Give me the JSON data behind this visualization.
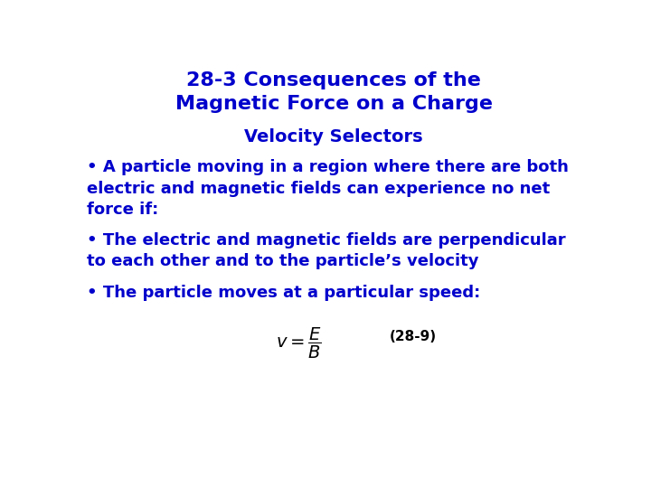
{
  "title_line1": "28-3 Consequences of the",
  "title_line2": "Magnetic Force on a Charge",
  "subtitle": "Velocity Selectors",
  "bullet1_line1": "• A particle moving in a region where there are both",
  "bullet1_line2": "electric and magnetic fields can experience no net",
  "bullet1_line3": "force if:",
  "bullet2_line1": "• The electric and magnetic fields are perpendicular",
  "bullet2_line2": "to each other and to the particle’s velocity",
  "bullet3_line1": "• The particle moves at a particular speed:",
  "equation_label": "(28-9)",
  "text_color": "#0000CC",
  "eq_color": "#000000",
  "bg_color": "#FFFFFF",
  "title_fontsize": 16,
  "subtitle_fontsize": 14,
  "body_fontsize": 13,
  "eq_fontsize": 14,
  "eq_label_fontsize": 11
}
